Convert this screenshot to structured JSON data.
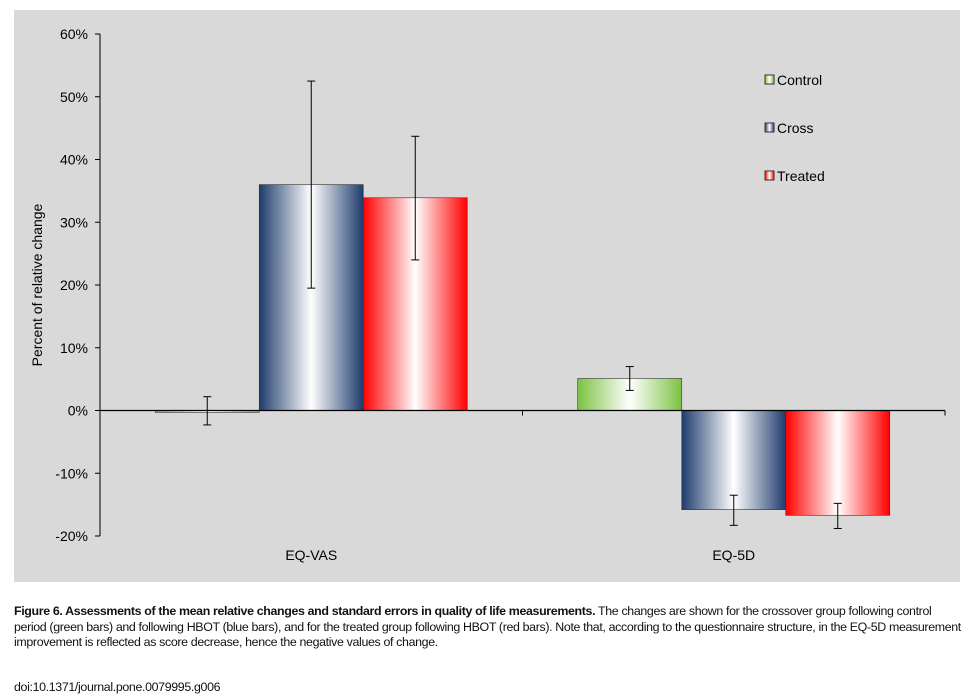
{
  "chart_data": {
    "type": "bar",
    "title": "",
    "xlabel": "",
    "ylabel": "Percent of relative change",
    "ylim": [
      -20,
      60
    ],
    "yticks": [
      "-20%",
      "-10%",
      "0%",
      "10%",
      "20%",
      "30%",
      "40%",
      "50%",
      "60%"
    ],
    "categories": [
      "EQ-VAS",
      "EQ-5D"
    ],
    "legend_position": "top-right",
    "series": [
      {
        "name": "Control",
        "color": "#7cc242",
        "values": [
          -0.3,
          5.1
        ],
        "err_low": [
          -2.3,
          3.2
        ],
        "err_high": [
          2.2,
          7.0
        ]
      },
      {
        "name": "Cross",
        "color": "#1f3c6e",
        "values": [
          36.0,
          -15.8
        ],
        "err_low": [
          19.5,
          -18.3
        ],
        "err_high": [
          52.5,
          -13.5
        ]
      },
      {
        "name": "Treated",
        "color": "#ff0000",
        "values": [
          33.9,
          -16.7
        ],
        "err_low": [
          24.0,
          -18.8
        ],
        "err_high": [
          43.7,
          -14.8
        ]
      }
    ]
  },
  "caption": {
    "title": "Figure 6. Assessments of the mean relative changes and standard errors in quality of life measurements.",
    "body": "The changes are shown for the crossover group following control period (green bars) and following HBOT (blue bars), and for the treated group following HBOT (red bars). Note that, according to the questionnaire structure, in the EQ-5D measurement improvement is reflected as score decrease, hence the negative values of change.",
    "doi": "doi:10.1371/journal.pone.0079995.g006"
  }
}
